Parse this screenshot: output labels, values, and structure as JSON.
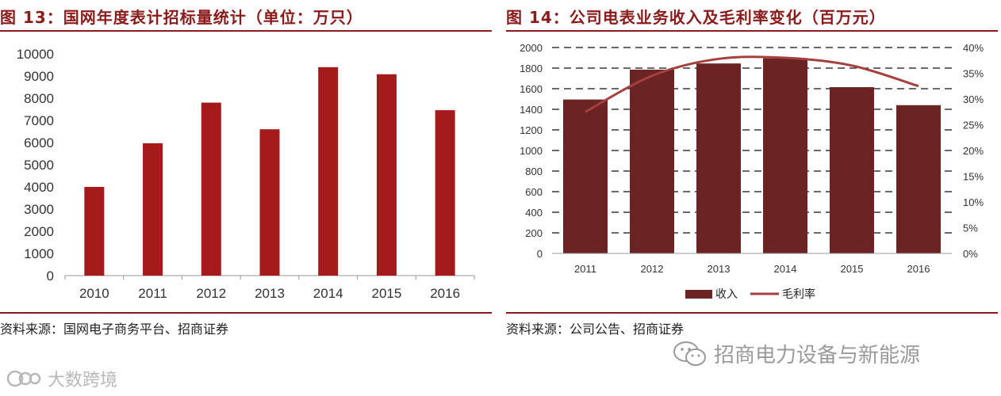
{
  "left": {
    "title": "图 13：国网年度表计招标量统计（单位：万只）",
    "source": "资料来源：国网电子商务平台、招商证券"
  },
  "right": {
    "title": "图 14：公司电表业务收入及毛利率变化（百万元）",
    "source": "资料来源：公司公告、招商证券"
  },
  "watermark_right": "招商电力设备与新能源",
  "watermark_left": "大数跨境",
  "colors": {
    "brand": "#8b1a1a",
    "bar_left": "#a51b1b",
    "bar_right": "#6b2323",
    "line_right": "#a54040"
  },
  "chart_data": [
    {
      "type": "bar",
      "title": "图 13：国网年度表计招标量统计（单位：万只）",
      "categories": [
        "2010",
        "2011",
        "2012",
        "2013",
        "2014",
        "2015",
        "2016"
      ],
      "values": [
        4000,
        5970,
        7800,
        6600,
        9400,
        9080,
        7460
      ],
      "ylim": [
        0,
        10000
      ],
      "yticks": [
        0,
        1000,
        2000,
        3000,
        4000,
        5000,
        6000,
        7000,
        8000,
        9000,
        10000
      ],
      "grid": false,
      "legend": "none"
    },
    {
      "type": "bar",
      "title": "图 14：公司电表业务收入及毛利率变化（百万元）",
      "categories": [
        "2011",
        "2012",
        "2013",
        "2014",
        "2015",
        "2016"
      ],
      "series": [
        {
          "name": "收入",
          "type": "bar",
          "axis": "left",
          "values": [
            1495,
            1785,
            1845,
            1895,
            1615,
            1440
          ]
        },
        {
          "name": "毛利率",
          "type": "line",
          "axis": "right",
          "values": [
            27.5,
            34.5,
            37.8,
            38.0,
            36.5,
            32.5
          ]
        }
      ],
      "ylim": [
        0,
        2000
      ],
      "yticks": [
        0,
        200,
        400,
        600,
        800,
        1000,
        1200,
        1400,
        1600,
        1800,
        2000
      ],
      "y2lim": [
        0,
        40
      ],
      "y2ticks": [
        "0%",
        "5%",
        "10%",
        "15%",
        "20%",
        "25%",
        "30%",
        "35%",
        "40%"
      ],
      "grid": true,
      "legend": "bottom"
    }
  ]
}
